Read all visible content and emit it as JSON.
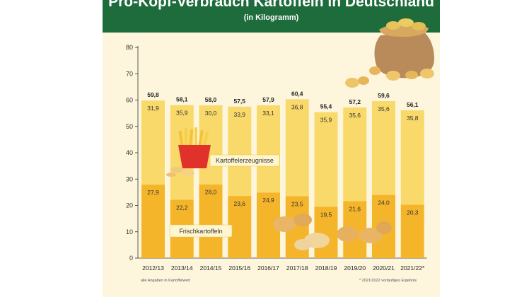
{
  "header": {
    "title": "Pro-Kopf-Verbrauch Kartoffeln in Deutschland",
    "subtitle": "(in Kilogramm)"
  },
  "footer": {
    "note_left": "alle Angaben in Kartoffelwert",
    "note_right": "* 2021/2022 vorläufiges Ergebnis"
  },
  "colors": {
    "header_bg": "#1e6b3c",
    "fresh": "#f5b52b",
    "products": "#f9d96a",
    "background": "#fdf6dc"
  },
  "icons": [
    "potato-sack-icon",
    "french-fries-icon",
    "potato-icon"
  ],
  "chart_data": {
    "type": "bar",
    "stacked": true,
    "categories": [
      "2012/13",
      "2013/14",
      "2014/15",
      "2015/16",
      "2016/17",
      "2017/18",
      "2018/19",
      "2019/20",
      "2020/21",
      "2021/22*"
    ],
    "series": [
      {
        "name": "Frischkartoffeln",
        "values": [
          27.9,
          22.2,
          28.0,
          23.6,
          24.9,
          23.5,
          19.5,
          21.6,
          24.0,
          20.3
        ]
      },
      {
        "name": "Kartoffelerzeugnisse",
        "values": [
          31.9,
          35.9,
          30.0,
          33.9,
          33.1,
          36.8,
          35.9,
          35.6,
          35.6,
          35.8
        ]
      }
    ],
    "totals": [
      59.8,
      58.1,
      58.0,
      57.5,
      57.9,
      60.4,
      55.4,
      57.2,
      59.6,
      56.1
    ],
    "yticks": [
      0,
      10,
      20,
      30,
      40,
      50,
      60,
      70,
      80
    ],
    "ylim": [
      0,
      80
    ],
    "grid": false,
    "legend": "inline labels"
  }
}
